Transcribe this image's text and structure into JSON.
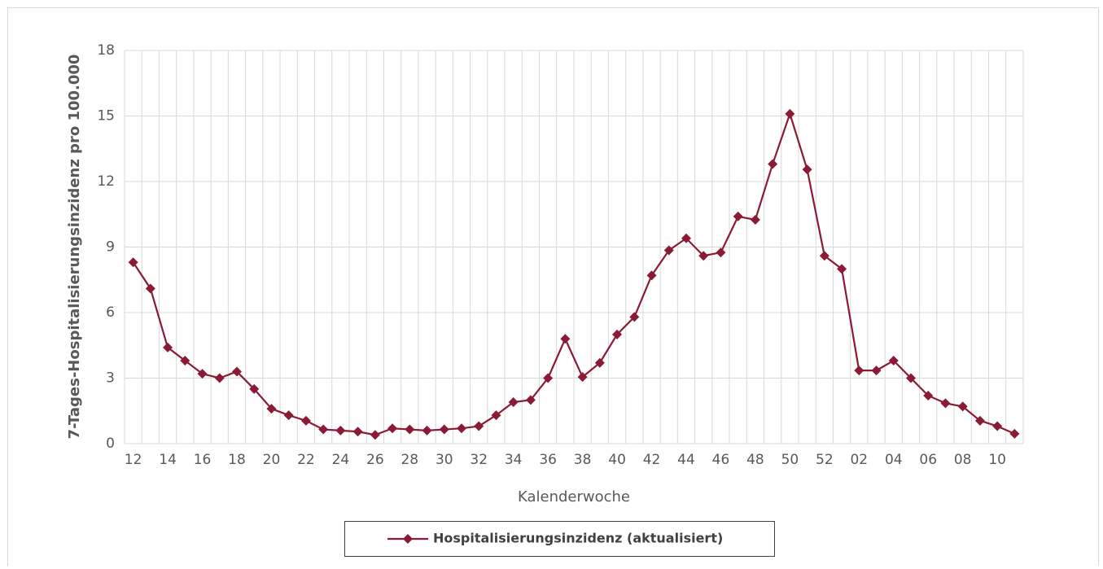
{
  "chart_data": {
    "type": "line",
    "y_label": "7-Tages-Hospitalisierungsinzidenz pro 100.000",
    "x_label": "Kalenderwoche",
    "categories": [
      "12",
      null,
      "14",
      null,
      "16",
      null,
      "18",
      null,
      "20",
      null,
      "22",
      null,
      "24",
      null,
      "26",
      null,
      "28",
      null,
      "30",
      null,
      "32",
      null,
      "34",
      null,
      "36",
      null,
      "38",
      null,
      "40",
      null,
      "42",
      null,
      "44",
      null,
      "46",
      null,
      "48",
      null,
      "50",
      null,
      "52",
      null,
      "02",
      null,
      "04",
      null,
      "06",
      null,
      "08",
      null,
      "10",
      null
    ],
    "series": [
      {
        "name": "Hospitalisierungsinzidenz (aktualisiert)",
        "color": "#8b1a35",
        "values": [
          8.3,
          7.1,
          4.4,
          3.8,
          3.2,
          3.0,
          3.3,
          2.5,
          1.6,
          1.3,
          1.05,
          0.65,
          0.6,
          0.55,
          0.4,
          0.7,
          0.65,
          0.6,
          0.65,
          0.7,
          0.8,
          1.3,
          1.9,
          2.0,
          3.0,
          4.8,
          3.05,
          3.7,
          5.0,
          5.8,
          7.7,
          8.85,
          9.4,
          8.6,
          8.75,
          10.4,
          10.25,
          12.8,
          15.1,
          12.55,
          8.6,
          8.0,
          3.35,
          3.35,
          3.8,
          3.0,
          2.2,
          1.85,
          1.7,
          1.05,
          0.8,
          0.45
        ]
      }
    ],
    "ylim": [
      0,
      18
    ],
    "yticks": [
      0,
      3,
      6,
      9,
      12,
      15,
      18
    ],
    "grid": true,
    "legend": "bottom"
  }
}
